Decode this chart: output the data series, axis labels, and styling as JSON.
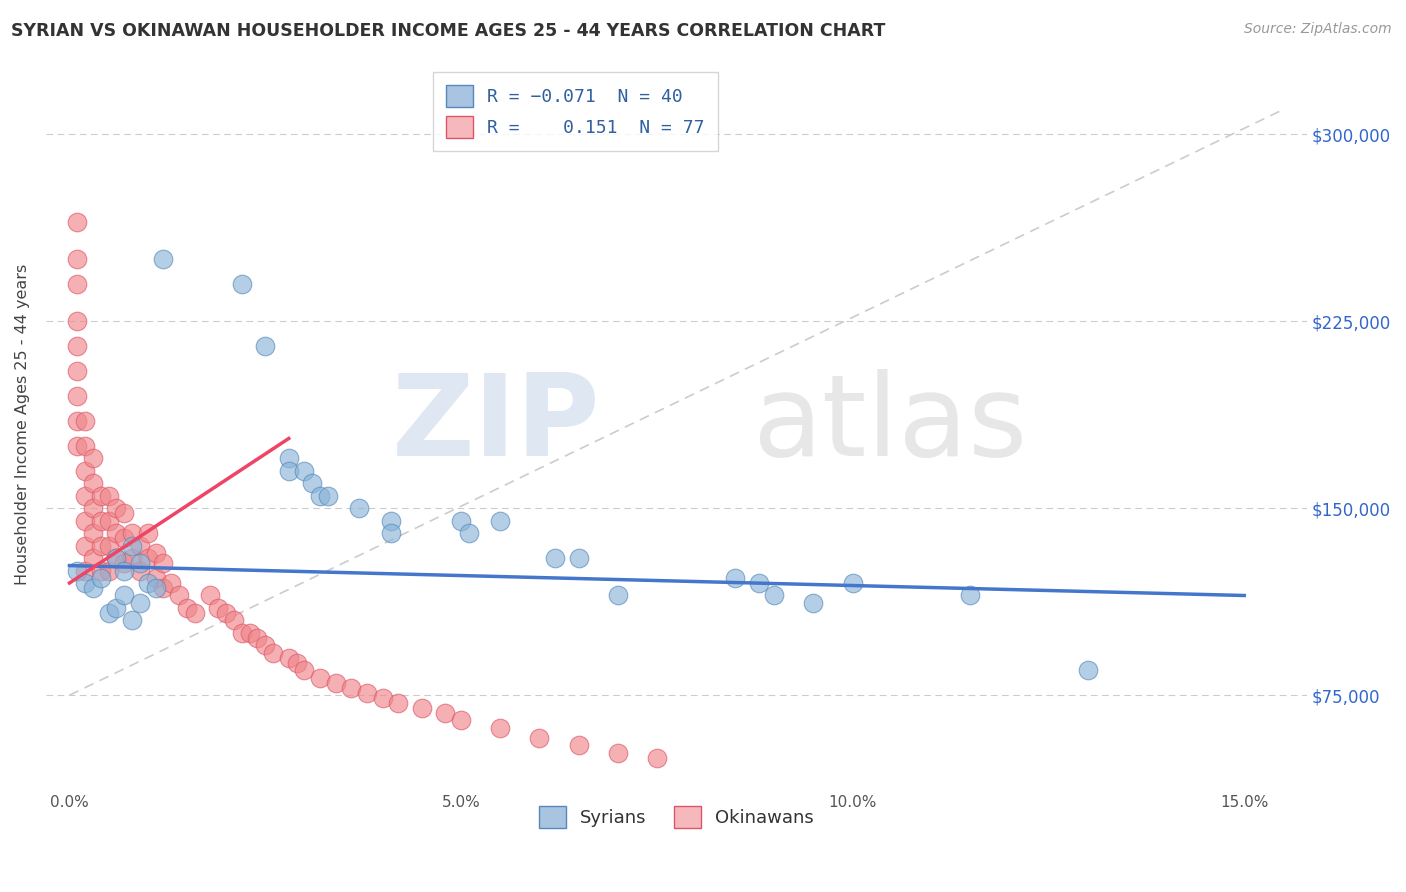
{
  "title": "SYRIAN VS OKINAWAN HOUSEHOLDER INCOME AGES 25 - 44 YEARS CORRELATION CHART",
  "source": "Source: ZipAtlas.com",
  "xlabel_ticks": [
    "0.0%",
    "5.0%",
    "10.0%",
    "15.0%"
  ],
  "xlabel_values": [
    0.0,
    0.05,
    0.1,
    0.15
  ],
  "ylabel_labels": [
    "$75,000",
    "$150,000",
    "$225,000",
    "$300,000"
  ],
  "ylabel_values": [
    75000,
    150000,
    225000,
    300000
  ],
  "ylim": [
    37000,
    330000
  ],
  "xlim": [
    -0.003,
    0.158
  ],
  "ylabel": "Householder Income Ages 25 - 44 years",
  "watermark_zip": "ZIP",
  "watermark_atlas": "atlas",
  "syrians_color": "#8ab4d8",
  "okinawans_color": "#f0868a",
  "syrians_edge": "#5588bb",
  "okinawans_edge": "#dd5566",
  "syrian_trend_color": "#4477cc",
  "okinawan_trend_color": "#ee4466",
  "ref_line_color": "#cccccc",
  "syrian_trend_x": [
    0.0,
    0.15
  ],
  "syrian_trend_y": [
    127000,
    115000
  ],
  "okinawan_trend_x": [
    0.0,
    0.028
  ],
  "okinawan_trend_y": [
    120000,
    178000
  ],
  "ref_line_x": [
    0.0,
    0.155
  ],
  "ref_line_y": [
    75000,
    310000
  ],
  "syrians_x": [
    0.001,
    0.002,
    0.003,
    0.004,
    0.005,
    0.006,
    0.006,
    0.007,
    0.007,
    0.008,
    0.008,
    0.009,
    0.009,
    0.01,
    0.011,
    0.012,
    0.022,
    0.025,
    0.028,
    0.028,
    0.03,
    0.031,
    0.032,
    0.033,
    0.037,
    0.041,
    0.041,
    0.05,
    0.051,
    0.055,
    0.062,
    0.065,
    0.07,
    0.085,
    0.088,
    0.09,
    0.095,
    0.1,
    0.115,
    0.13
  ],
  "syrians_y": [
    125000,
    120000,
    118000,
    122000,
    108000,
    130000,
    110000,
    125000,
    115000,
    135000,
    105000,
    128000,
    112000,
    120000,
    118000,
    250000,
    240000,
    215000,
    170000,
    165000,
    165000,
    160000,
    155000,
    155000,
    150000,
    145000,
    140000,
    145000,
    140000,
    145000,
    130000,
    130000,
    115000,
    122000,
    120000,
    115000,
    112000,
    120000,
    115000,
    85000
  ],
  "okinawans_x": [
    0.001,
    0.001,
    0.001,
    0.001,
    0.001,
    0.001,
    0.001,
    0.001,
    0.001,
    0.002,
    0.002,
    0.002,
    0.002,
    0.002,
    0.002,
    0.002,
    0.003,
    0.003,
    0.003,
    0.003,
    0.003,
    0.004,
    0.004,
    0.004,
    0.004,
    0.005,
    0.005,
    0.005,
    0.005,
    0.006,
    0.006,
    0.006,
    0.007,
    0.007,
    0.007,
    0.008,
    0.008,
    0.009,
    0.009,
    0.01,
    0.01,
    0.011,
    0.011,
    0.012,
    0.012,
    0.013,
    0.014,
    0.015,
    0.016,
    0.018,
    0.019,
    0.02,
    0.021,
    0.022,
    0.023,
    0.024,
    0.025,
    0.026,
    0.028,
    0.029,
    0.03,
    0.032,
    0.034,
    0.036,
    0.038,
    0.04,
    0.042,
    0.045,
    0.048,
    0.05,
    0.055,
    0.06,
    0.065,
    0.07,
    0.075
  ],
  "okinawans_y": [
    265000,
    250000,
    240000,
    225000,
    215000,
    205000,
    195000,
    185000,
    175000,
    185000,
    175000,
    165000,
    155000,
    145000,
    135000,
    125000,
    170000,
    160000,
    150000,
    140000,
    130000,
    155000,
    145000,
    135000,
    125000,
    155000,
    145000,
    135000,
    125000,
    150000,
    140000,
    130000,
    148000,
    138000,
    128000,
    140000,
    130000,
    135000,
    125000,
    140000,
    130000,
    132000,
    122000,
    128000,
    118000,
    120000,
    115000,
    110000,
    108000,
    115000,
    110000,
    108000,
    105000,
    100000,
    100000,
    98000,
    95000,
    92000,
    90000,
    88000,
    85000,
    82000,
    80000,
    78000,
    76000,
    74000,
    72000,
    70000,
    68000,
    65000,
    62000,
    58000,
    55000,
    52000,
    50000
  ]
}
